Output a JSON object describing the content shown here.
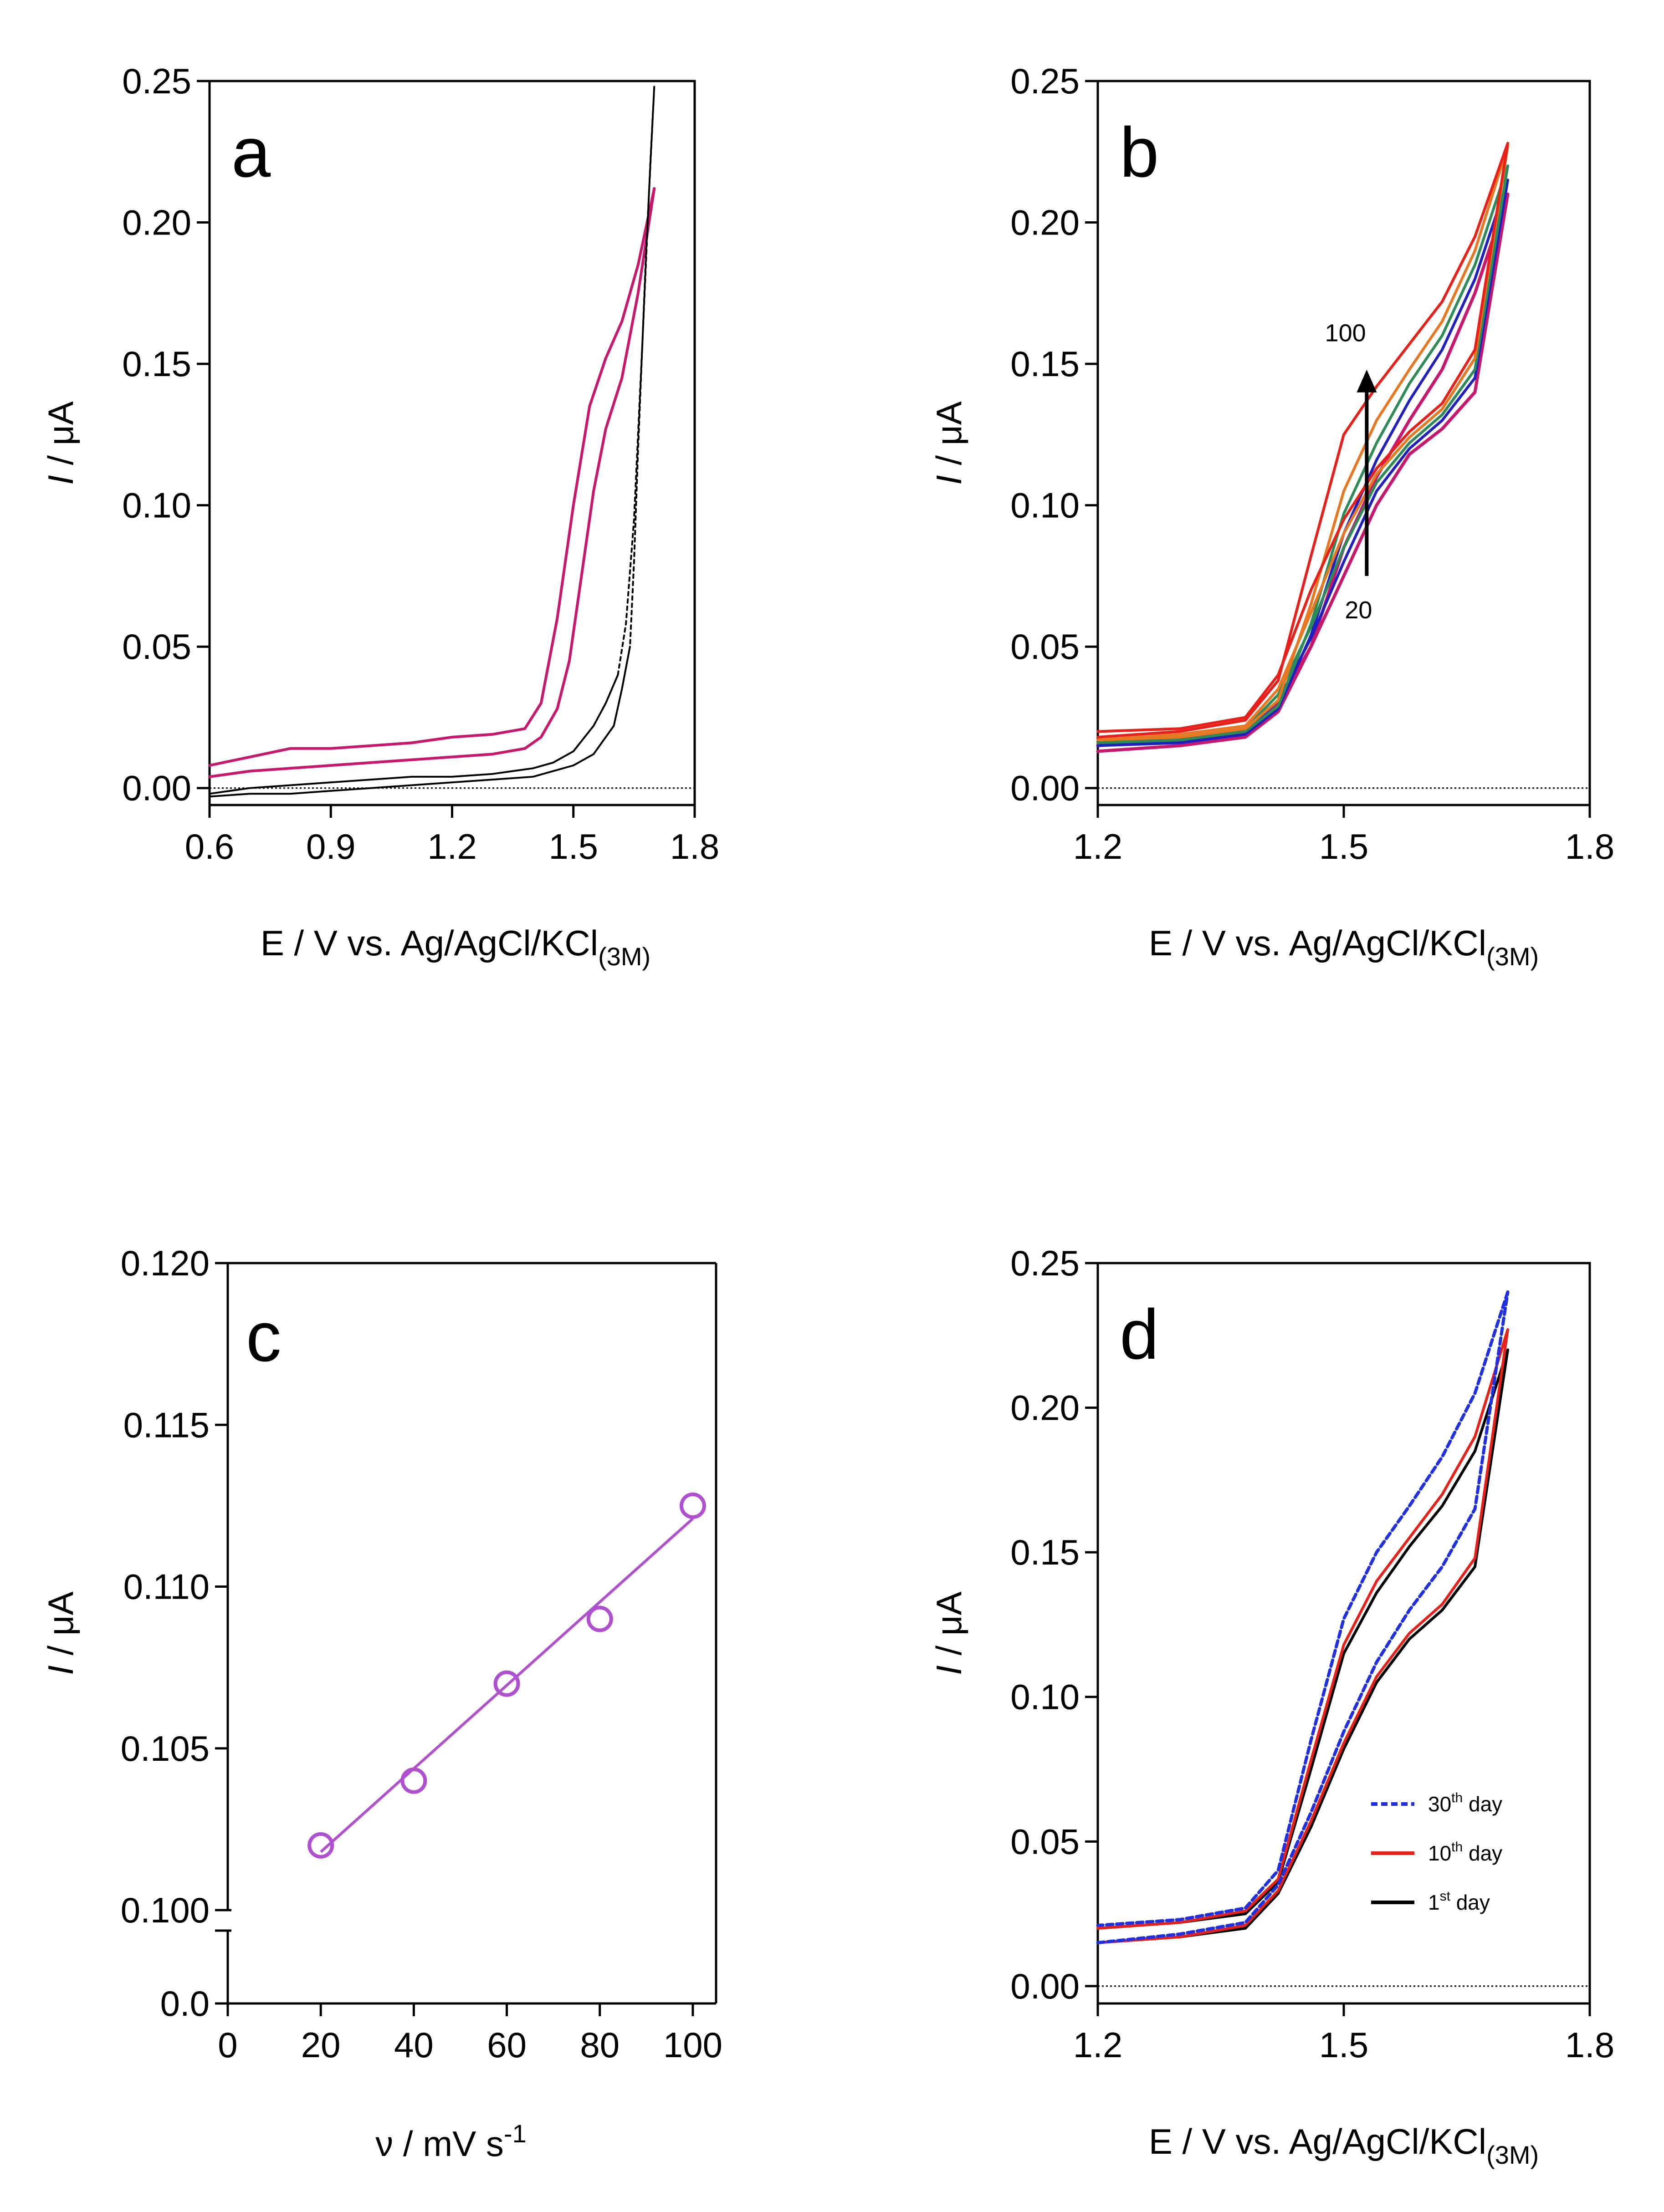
{
  "chart_data": [
    {
      "panel": "a",
      "type": "line",
      "xlabel": "E / V vs. Ag/AgCl/KCl",
      "xlabel_subscript": "(3M)",
      "ylabel_italic": "I",
      "ylabel_rest": " / μA",
      "xlim": [
        0.6,
        1.8
      ],
      "ylim": [
        -0.006,
        0.25
      ],
      "xticks": [
        0.6,
        0.9,
        1.2,
        1.5,
        1.8
      ],
      "xtick_labels": [
        "0.6",
        "0.9",
        "1.2",
        "1.5",
        "1.8"
      ],
      "yticks": [
        0.0,
        0.05,
        0.1,
        0.15,
        0.2,
        0.25
      ],
      "ytick_labels": [
        "0.00",
        "0.05",
        "0.10",
        "0.15",
        "0.20",
        "0.25"
      ],
      "zero_line": true,
      "series": [
        {
          "color": "#c8186e",
          "width": 6,
          "dash": "",
          "x": [
            0.6,
            0.7,
            0.8,
            0.9,
            1.0,
            1.1,
            1.2,
            1.3,
            1.38,
            1.42,
            1.46,
            1.5,
            1.54,
            1.58,
            1.62,
            1.66,
            1.7
          ],
          "y": [
            0.008,
            0.011,
            0.014,
            0.014,
            0.015,
            0.016,
            0.018,
            0.019,
            0.021,
            0.03,
            0.06,
            0.1,
            0.135,
            0.152,
            0.165,
            0.185,
            0.212
          ]
        },
        {
          "color": "#c8186e",
          "width": 6,
          "dash": "",
          "x": [
            1.7,
            1.66,
            1.62,
            1.58,
            1.55,
            1.52,
            1.49,
            1.46,
            1.42,
            1.38,
            1.3,
            1.2,
            1.1,
            1.0,
            0.9,
            0.8,
            0.7,
            0.6
          ],
          "y": [
            0.212,
            0.175,
            0.145,
            0.127,
            0.105,
            0.075,
            0.045,
            0.028,
            0.018,
            0.014,
            0.012,
            0.011,
            0.01,
            0.009,
            0.008,
            0.007,
            0.006,
            0.004
          ]
        },
        {
          "color": "#000000",
          "width": 4,
          "dash": "",
          "x": [
            0.6,
            0.7,
            0.8,
            0.9,
            1.0,
            1.1,
            1.2,
            1.3,
            1.4,
            1.45,
            1.5,
            1.55,
            1.58,
            1.61
          ],
          "y": [
            -0.002,
            0.0,
            0.001,
            0.002,
            0.003,
            0.004,
            0.004,
            0.005,
            0.007,
            0.009,
            0.013,
            0.022,
            0.03,
            0.04
          ]
        },
        {
          "color": "#000000",
          "width": 4,
          "dash": "8 8",
          "x": [
            1.61,
            1.63,
            1.65,
            1.67,
            1.69,
            1.7
          ],
          "y": [
            0.04,
            0.058,
            0.095,
            0.155,
            0.22,
            0.248
          ]
        },
        {
          "color": "#000000",
          "width": 4,
          "dash": "8 8",
          "x": [
            1.7,
            1.68,
            1.66,
            1.65,
            1.64
          ],
          "y": [
            0.248,
            0.19,
            0.12,
            0.08,
            0.05
          ]
        },
        {
          "color": "#000000",
          "width": 4,
          "dash": "",
          "x": [
            1.64,
            1.62,
            1.6,
            1.55,
            1.5,
            1.4,
            1.3,
            1.2,
            1.1,
            1.0,
            0.9,
            0.8,
            0.7,
            0.6
          ],
          "y": [
            0.05,
            0.035,
            0.022,
            0.012,
            0.008,
            0.004,
            0.003,
            0.002,
            0.001,
            0.0,
            -0.001,
            -0.002,
            -0.002,
            -0.003
          ]
        }
      ]
    },
    {
      "panel": "b",
      "type": "line",
      "xlabel": "E / V vs. Ag/AgCl/KCl",
      "xlabel_subscript": "(3M)",
      "ylabel_italic": "I",
      "ylabel_rest": " / μA",
      "xlim": [
        1.2,
        1.8
      ],
      "ylim": [
        -0.006,
        0.25
      ],
      "xticks": [
        1.2,
        1.5,
        1.8
      ],
      "xtick_labels": [
        "1.2",
        "1.5",
        "1.8"
      ],
      "yticks": [
        0.0,
        0.05,
        0.1,
        0.15,
        0.2,
        0.25
      ],
      "ytick_labels": [
        "0.00",
        "0.05",
        "0.10",
        "0.15",
        "0.20",
        "0.25"
      ],
      "zero_line": true,
      "annotations": [
        {
          "text": "100",
          "x": 1.502,
          "y": 0.158
        },
        {
          "text": "20",
          "x": 1.518,
          "y": 0.06
        }
      ],
      "arrow": {
        "x": 1.528,
        "y_from": 0.075,
        "y_to": 0.147
      },
      "series": [
        {
          "color": "#c8186e",
          "width": 7,
          "x": [
            1.2,
            1.3,
            1.38,
            1.42,
            1.46,
            1.5,
            1.54,
            1.58,
            1.62,
            1.66,
            1.7
          ],
          "y": [
            0.015,
            0.017,
            0.02,
            0.03,
            0.05,
            0.075,
            0.1,
            0.118,
            0.127,
            0.14,
            0.21
          ]
        },
        {
          "color": "#c8186e",
          "width": 7,
          "x": [
            1.7,
            1.66,
            1.62,
            1.58,
            1.54,
            1.5,
            1.46,
            1.42,
            1.38,
            1.3,
            1.2
          ],
          "y": [
            0.21,
            0.175,
            0.148,
            0.13,
            0.11,
            0.085,
            0.05,
            0.027,
            0.018,
            0.015,
            0.013
          ]
        },
        {
          "color": "#2020c0",
          "width": 6,
          "x": [
            1.2,
            1.3,
            1.38,
            1.42,
            1.46,
            1.5,
            1.54,
            1.58,
            1.62,
            1.66,
            1.7
          ],
          "y": [
            0.015,
            0.017,
            0.02,
            0.031,
            0.053,
            0.08,
            0.105,
            0.12,
            0.13,
            0.145,
            0.215
          ]
        },
        {
          "color": "#2020c0",
          "width": 6,
          "x": [
            1.7,
            1.66,
            1.62,
            1.58,
            1.54,
            1.5,
            1.46,
            1.42,
            1.38,
            1.3,
            1.2
          ],
          "y": [
            0.215,
            0.18,
            0.155,
            0.137,
            0.116,
            0.09,
            0.054,
            0.028,
            0.019,
            0.016,
            0.015
          ]
        },
        {
          "color": "#2e8b57",
          "width": 6,
          "x": [
            1.2,
            1.3,
            1.38,
            1.42,
            1.46,
            1.5,
            1.54,
            1.58,
            1.62,
            1.66,
            1.7
          ],
          "y": [
            0.016,
            0.018,
            0.021,
            0.033,
            0.057,
            0.085,
            0.108,
            0.122,
            0.132,
            0.148,
            0.22
          ]
        },
        {
          "color": "#2e8b57",
          "width": 6,
          "x": [
            1.7,
            1.66,
            1.62,
            1.58,
            1.54,
            1.5,
            1.46,
            1.42,
            1.38,
            1.3,
            1.2
          ],
          "y": [
            0.22,
            0.185,
            0.16,
            0.143,
            0.122,
            0.097,
            0.058,
            0.029,
            0.02,
            0.017,
            0.016
          ]
        },
        {
          "color": "#e87722",
          "width": 6,
          "x": [
            1.2,
            1.3,
            1.38,
            1.42,
            1.46,
            1.5,
            1.54,
            1.58,
            1.62,
            1.66,
            1.7
          ],
          "y": [
            0.017,
            0.019,
            0.022,
            0.035,
            0.062,
            0.09,
            0.111,
            0.124,
            0.134,
            0.152,
            0.227
          ]
        },
        {
          "color": "#e87722",
          "width": 6,
          "x": [
            1.7,
            1.66,
            1.62,
            1.58,
            1.54,
            1.5,
            1.46,
            1.42,
            1.38,
            1.3,
            1.2
          ],
          "y": [
            0.227,
            0.19,
            0.165,
            0.148,
            0.13,
            0.105,
            0.065,
            0.031,
            0.021,
            0.018,
            0.017
          ]
        },
        {
          "color": "#e8201a",
          "width": 6,
          "x": [
            1.2,
            1.3,
            1.38,
            1.42,
            1.46,
            1.5,
            1.54,
            1.58,
            1.62,
            1.66,
            1.7
          ],
          "y": [
            0.02,
            0.021,
            0.025,
            0.04,
            0.07,
            0.095,
            0.113,
            0.126,
            0.136,
            0.155,
            0.228
          ]
        },
        {
          "color": "#e8201a",
          "width": 6,
          "x": [
            1.7,
            1.66,
            1.62,
            1.58,
            1.54,
            1.5,
            1.46,
            1.42,
            1.38,
            1.3,
            1.2
          ],
          "y": [
            0.228,
            0.195,
            0.172,
            0.157,
            0.142,
            0.125,
            0.082,
            0.038,
            0.024,
            0.02,
            0.018
          ]
        }
      ]
    },
    {
      "panel": "c",
      "type": "scatter",
      "xlabel": "ν / mV s",
      "xlabel_superscript": "-1",
      "ylabel_italic": "I",
      "ylabel_rest": " / μA",
      "xlim": [
        0,
        105
      ],
      "ylim": [
        0.1,
        0.12
      ],
      "axis_break": true,
      "xticks": [
        0,
        20,
        40,
        60,
        80,
        100
      ],
      "xtick_labels": [
        "0",
        "20",
        "40",
        "60",
        "80",
        "100"
      ],
      "yticks": [
        0.1,
        0.105,
        0.11,
        0.115,
        0.12
      ],
      "ytick_labels": [
        "0.100",
        "0.105",
        "0.110",
        "0.115",
        "0.120"
      ],
      "lower_tick_label": "0.0",
      "x": [
        20,
        40,
        60,
        80,
        100
      ],
      "y": [
        0.102,
        0.104,
        0.107,
        0.109,
        0.1125
      ],
      "fit": {
        "x": [
          20,
          100
        ],
        "y": [
          0.1018,
          0.1121
        ]
      },
      "color": "#b04fd0"
    },
    {
      "panel": "d",
      "type": "line",
      "xlabel": "E / V vs. Ag/AgCl/KCl",
      "xlabel_subscript": "(3M)",
      "ylabel_italic": "I",
      "ylabel_rest": " / μA",
      "xlim": [
        1.2,
        1.8
      ],
      "ylim": [
        -0.006,
        0.25
      ],
      "xticks": [
        1.2,
        1.5,
        1.8
      ],
      "xtick_labels": [
        "1.2",
        "1.5",
        "1.8"
      ],
      "yticks": [
        0.0,
        0.05,
        0.1,
        0.15,
        0.2,
        0.25
      ],
      "ytick_labels": [
        "0.00",
        "0.05",
        "0.10",
        "0.15",
        "0.20",
        "0.25"
      ],
      "zero_line": true,
      "legend": [
        {
          "base": "30",
          "sup": "th",
          "rest": " day",
          "color": "#2030e0",
          "dash": "14 8"
        },
        {
          "base": "10",
          "sup": "th",
          "rest": " day",
          "color": "#e8201a",
          "dash": ""
        },
        {
          "base": "1",
          "sup": "st",
          "rest": " day",
          "color": "#000000",
          "dash": ""
        }
      ],
      "series": [
        {
          "color": "#000000",
          "width": 6,
          "dash": "",
          "x": [
            1.2,
            1.3,
            1.38,
            1.42,
            1.46,
            1.5,
            1.54,
            1.58,
            1.62,
            1.66,
            1.7
          ],
          "y": [
            0.015,
            0.017,
            0.02,
            0.032,
            0.055,
            0.082,
            0.105,
            0.12,
            0.13,
            0.145,
            0.22
          ]
        },
        {
          "color": "#000000",
          "width": 6,
          "dash": "",
          "x": [
            1.7,
            1.66,
            1.62,
            1.58,
            1.54,
            1.5,
            1.46,
            1.42,
            1.38,
            1.3,
            1.2
          ],
          "y": [
            0.22,
            0.185,
            0.166,
            0.152,
            0.136,
            0.115,
            0.075,
            0.036,
            0.025,
            0.022,
            0.02
          ]
        },
        {
          "color": "#e8201a",
          "width": 6,
          "dash": "",
          "x": [
            1.2,
            1.3,
            1.38,
            1.42,
            1.46,
            1.5,
            1.54,
            1.58,
            1.62,
            1.66,
            1.7
          ],
          "y": [
            0.015,
            0.017,
            0.021,
            0.033,
            0.057,
            0.084,
            0.107,
            0.122,
            0.132,
            0.148,
            0.227
          ]
        },
        {
          "color": "#e8201a",
          "width": 6,
          "dash": "",
          "x": [
            1.7,
            1.66,
            1.62,
            1.58,
            1.54,
            1.5,
            1.46,
            1.42,
            1.38,
            1.3,
            1.2
          ],
          "y": [
            0.227,
            0.19,
            0.17,
            0.155,
            0.14,
            0.118,
            0.078,
            0.037,
            0.026,
            0.022,
            0.02
          ]
        },
        {
          "color": "#2030e0",
          "width": 7,
          "dash": "14 8",
          "x": [
            1.2,
            1.3,
            1.38,
            1.42,
            1.46,
            1.5,
            1.54,
            1.58,
            1.62,
            1.66,
            1.7
          ],
          "y": [
            0.015,
            0.018,
            0.022,
            0.035,
            0.06,
            0.088,
            0.112,
            0.13,
            0.145,
            0.165,
            0.24
          ]
        },
        {
          "color": "#2030e0",
          "width": 7,
          "dash": "14 8",
          "x": [
            1.7,
            1.66,
            1.62,
            1.58,
            1.54,
            1.5,
            1.46,
            1.42,
            1.38,
            1.3,
            1.2
          ],
          "y": [
            0.24,
            0.205,
            0.183,
            0.166,
            0.15,
            0.127,
            0.085,
            0.04,
            0.027,
            0.023,
            0.021
          ]
        }
      ]
    }
  ]
}
